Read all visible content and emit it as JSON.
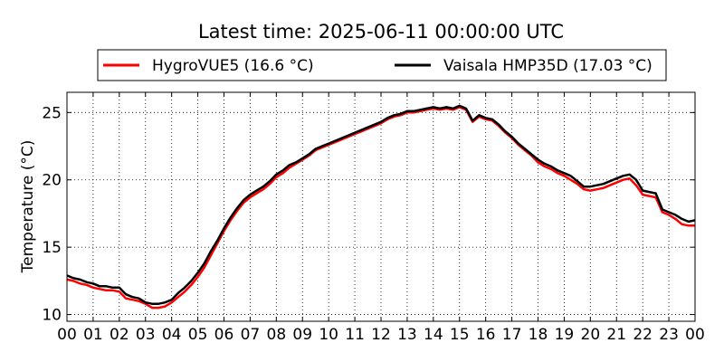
{
  "chart_data": {
    "type": "line",
    "title": "Latest time: 2025-06-11 00:00:00 UTC",
    "ylabel": "Temperature (°C)",
    "xlabel": "",
    "xlim": [
      0,
      24
    ],
    "ylim": [
      9.5,
      26.5
    ],
    "x_tick_labels": [
      "00",
      "01",
      "02",
      "03",
      "04",
      "05",
      "06",
      "07",
      "08",
      "09",
      "10",
      "11",
      "12",
      "13",
      "14",
      "15",
      "16",
      "17",
      "18",
      "19",
      "20",
      "21",
      "22",
      "23",
      "00"
    ],
    "y_ticks": [
      10,
      15,
      20,
      25
    ],
    "grid": true,
    "legend_position": "top",
    "series": [
      {
        "name": "HygroVUE5 (16.6 °C)",
        "color": "#ff0000",
        "points": [
          [
            0,
            12.6
          ],
          [
            0.25,
            12.5
          ],
          [
            0.5,
            12.3
          ],
          [
            0.75,
            12.2
          ],
          [
            1,
            12.0
          ],
          [
            1.25,
            11.9
          ],
          [
            1.5,
            11.8
          ],
          [
            1.75,
            11.8
          ],
          [
            2,
            11.7
          ],
          [
            2.25,
            11.2
          ],
          [
            2.5,
            11.1
          ],
          [
            2.75,
            11.0
          ],
          [
            3,
            10.8
          ],
          [
            3.25,
            10.5
          ],
          [
            3.5,
            10.5
          ],
          [
            3.75,
            10.6
          ],
          [
            4,
            10.9
          ],
          [
            4.25,
            11.3
          ],
          [
            4.5,
            11.7
          ],
          [
            4.75,
            12.2
          ],
          [
            5,
            12.8
          ],
          [
            5.25,
            13.5
          ],
          [
            5.5,
            14.4
          ],
          [
            5.75,
            15.3
          ],
          [
            6,
            16.2
          ],
          [
            6.25,
            17.0
          ],
          [
            6.5,
            17.7
          ],
          [
            6.75,
            18.3
          ],
          [
            7,
            18.7
          ],
          [
            7.25,
            19.0
          ],
          [
            7.5,
            19.3
          ],
          [
            7.75,
            19.7
          ],
          [
            8,
            20.2
          ],
          [
            8.25,
            20.5
          ],
          [
            8.5,
            20.9
          ],
          [
            8.75,
            21.2
          ],
          [
            9,
            21.5
          ],
          [
            9.25,
            21.8
          ],
          [
            9.5,
            22.2
          ],
          [
            9.75,
            22.4
          ],
          [
            10,
            22.6
          ],
          [
            10.25,
            22.8
          ],
          [
            10.5,
            23.0
          ],
          [
            10.75,
            23.2
          ],
          [
            11,
            23.4
          ],
          [
            11.25,
            23.6
          ],
          [
            11.5,
            23.8
          ],
          [
            11.75,
            24.0
          ],
          [
            12,
            24.2
          ],
          [
            12.25,
            24.5
          ],
          [
            12.5,
            24.7
          ],
          [
            12.75,
            24.8
          ],
          [
            13,
            25.0
          ],
          [
            13.25,
            25.0
          ],
          [
            13.5,
            25.1
          ],
          [
            13.75,
            25.2
          ],
          [
            14,
            25.3
          ],
          [
            14.25,
            25.2
          ],
          [
            14.5,
            25.3
          ],
          [
            14.75,
            25.2
          ],
          [
            15,
            25.4
          ],
          [
            15.25,
            25.2
          ],
          [
            15.5,
            24.3
          ],
          [
            15.75,
            24.7
          ],
          [
            16,
            24.5
          ],
          [
            16.25,
            24.4
          ],
          [
            16.5,
            24.0
          ],
          [
            16.75,
            23.5
          ],
          [
            17,
            23.1
          ],
          [
            17.25,
            22.6
          ],
          [
            17.5,
            22.2
          ],
          [
            17.75,
            21.8
          ],
          [
            18,
            21.3
          ],
          [
            18.25,
            21.0
          ],
          [
            18.5,
            20.8
          ],
          [
            18.75,
            20.5
          ],
          [
            19,
            20.3
          ],
          [
            19.25,
            20.0
          ],
          [
            19.5,
            19.7
          ],
          [
            19.75,
            19.3
          ],
          [
            20,
            19.2
          ],
          [
            20.25,
            19.3
          ],
          [
            20.5,
            19.4
          ],
          [
            20.75,
            19.6
          ],
          [
            21,
            19.8
          ],
          [
            21.25,
            20.0
          ],
          [
            21.5,
            20.1
          ],
          [
            21.75,
            19.6
          ],
          [
            22,
            18.9
          ],
          [
            22.25,
            18.8
          ],
          [
            22.5,
            18.7
          ],
          [
            22.75,
            17.6
          ],
          [
            23,
            17.4
          ],
          [
            23.25,
            17.1
          ],
          [
            23.5,
            16.7
          ],
          [
            23.75,
            16.6
          ],
          [
            24,
            16.6
          ]
        ]
      },
      {
        "name": "Vaisala HMP35D (17.03 °C)",
        "color": "#000000",
        "points": [
          [
            0,
            12.9
          ],
          [
            0.25,
            12.7
          ],
          [
            0.5,
            12.6
          ],
          [
            0.75,
            12.4
          ],
          [
            1,
            12.3
          ],
          [
            1.25,
            12.1
          ],
          [
            1.5,
            12.1
          ],
          [
            1.75,
            12.0
          ],
          [
            2,
            12.0
          ],
          [
            2.25,
            11.5
          ],
          [
            2.5,
            11.3
          ],
          [
            2.75,
            11.2
          ],
          [
            3,
            10.9
          ],
          [
            3.25,
            10.8
          ],
          [
            3.5,
            10.8
          ],
          [
            3.75,
            10.9
          ],
          [
            4,
            11.1
          ],
          [
            4.25,
            11.6
          ],
          [
            4.5,
            12.0
          ],
          [
            4.75,
            12.5
          ],
          [
            5,
            13.1
          ],
          [
            5.25,
            13.8
          ],
          [
            5.5,
            14.7
          ],
          [
            5.75,
            15.5
          ],
          [
            6,
            16.4
          ],
          [
            6.25,
            17.2
          ],
          [
            6.5,
            17.9
          ],
          [
            6.75,
            18.5
          ],
          [
            7,
            18.9
          ],
          [
            7.25,
            19.2
          ],
          [
            7.5,
            19.5
          ],
          [
            7.75,
            19.9
          ],
          [
            8,
            20.4
          ],
          [
            8.25,
            20.7
          ],
          [
            8.5,
            21.1
          ],
          [
            8.75,
            21.3
          ],
          [
            9,
            21.6
          ],
          [
            9.25,
            21.9
          ],
          [
            9.5,
            22.3
          ],
          [
            9.75,
            22.5
          ],
          [
            10,
            22.7
          ],
          [
            10.25,
            22.9
          ],
          [
            10.5,
            23.1
          ],
          [
            10.75,
            23.3
          ],
          [
            11,
            23.5
          ],
          [
            11.25,
            23.7
          ],
          [
            11.5,
            23.9
          ],
          [
            11.75,
            24.1
          ],
          [
            12,
            24.3
          ],
          [
            12.25,
            24.6
          ],
          [
            12.5,
            24.8
          ],
          [
            12.75,
            24.9
          ],
          [
            13,
            25.1
          ],
          [
            13.25,
            25.1
          ],
          [
            13.5,
            25.2
          ],
          [
            13.75,
            25.3
          ],
          [
            14,
            25.4
          ],
          [
            14.25,
            25.3
          ],
          [
            14.5,
            25.4
          ],
          [
            14.75,
            25.3
          ],
          [
            15,
            25.5
          ],
          [
            15.25,
            25.3
          ],
          [
            15.5,
            24.4
          ],
          [
            15.75,
            24.8
          ],
          [
            16,
            24.6
          ],
          [
            16.25,
            24.5
          ],
          [
            16.5,
            24.1
          ],
          [
            16.75,
            23.6
          ],
          [
            17,
            23.2
          ],
          [
            17.25,
            22.7
          ],
          [
            17.5,
            22.3
          ],
          [
            17.75,
            21.9
          ],
          [
            18,
            21.5
          ],
          [
            18.25,
            21.2
          ],
          [
            18.5,
            21.0
          ],
          [
            18.75,
            20.7
          ],
          [
            19,
            20.5
          ],
          [
            19.25,
            20.3
          ],
          [
            19.5,
            19.9
          ],
          [
            19.75,
            19.5
          ],
          [
            20,
            19.5
          ],
          [
            20.25,
            19.6
          ],
          [
            20.5,
            19.7
          ],
          [
            20.75,
            19.9
          ],
          [
            21,
            20.1
          ],
          [
            21.25,
            20.3
          ],
          [
            21.5,
            20.4
          ],
          [
            21.75,
            20.0
          ],
          [
            22,
            19.2
          ],
          [
            22.25,
            19.1
          ],
          [
            22.5,
            19.0
          ],
          [
            22.75,
            17.8
          ],
          [
            23,
            17.6
          ],
          [
            23.25,
            17.4
          ],
          [
            23.5,
            17.1
          ],
          [
            23.75,
            16.9
          ],
          [
            24,
            17.0
          ]
        ]
      }
    ]
  }
}
